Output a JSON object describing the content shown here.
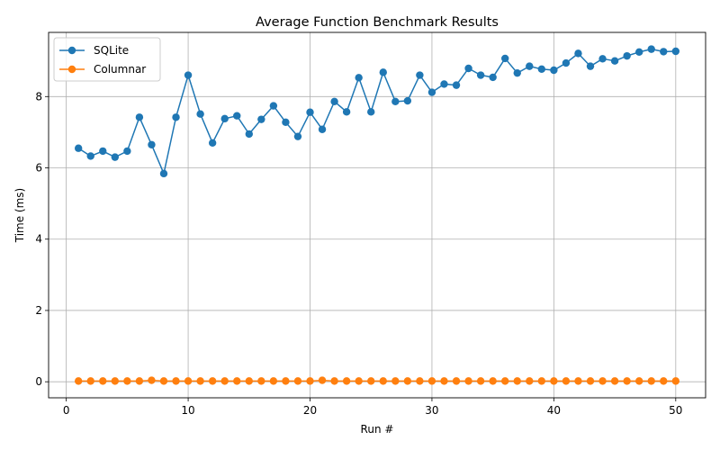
{
  "chart_data": {
    "type": "line",
    "title": "Average Function Benchmark Results",
    "xlabel": "Run #",
    "ylabel": "Time (ms)",
    "xlim": [
      -1.45,
      52.45
    ],
    "ylim": [
      -0.45,
      9.8
    ],
    "xticks": [
      "0",
      "10",
      "20",
      "30",
      "40",
      "50"
    ],
    "yticks": [
      "0",
      "2",
      "4",
      "6",
      "8"
    ],
    "grid": true,
    "legend_position": "top-left",
    "x": [
      1,
      2,
      3,
      4,
      5,
      6,
      7,
      8,
      9,
      10,
      11,
      12,
      13,
      14,
      15,
      16,
      17,
      18,
      19,
      20,
      21,
      22,
      23,
      24,
      25,
      26,
      27,
      28,
      29,
      30,
      31,
      32,
      33,
      34,
      35,
      36,
      37,
      38,
      39,
      40,
      41,
      42,
      43,
      44,
      45,
      46,
      47,
      48,
      49,
      50
    ],
    "series": [
      {
        "name": "SQLite",
        "color": "#1f77b4",
        "values": [
          6.55,
          6.33,
          6.47,
          6.3,
          6.47,
          7.42,
          6.65,
          5.84,
          7.42,
          8.6,
          7.51,
          6.7,
          7.38,
          7.46,
          6.95,
          7.36,
          7.74,
          7.28,
          6.88,
          7.56,
          7.08,
          7.86,
          7.57,
          8.53,
          7.57,
          8.68,
          7.86,
          7.88,
          8.6,
          8.12,
          8.35,
          8.32,
          8.79,
          8.6,
          8.54,
          9.07,
          8.66,
          8.85,
          8.77,
          8.74,
          8.94,
          9.21,
          8.85,
          9.06,
          9.0,
          9.14,
          9.25,
          9.33,
          9.26,
          9.27
        ]
      },
      {
        "name": "Columnar",
        "color": "#ff7f0e",
        "values": [
          0.02,
          0.02,
          0.02,
          0.02,
          0.02,
          0.02,
          0.04,
          0.02,
          0.02,
          0.02,
          0.02,
          0.02,
          0.02,
          0.02,
          0.02,
          0.02,
          0.02,
          0.02,
          0.02,
          0.02,
          0.04,
          0.02,
          0.02,
          0.02,
          0.02,
          0.02,
          0.02,
          0.02,
          0.02,
          0.02,
          0.02,
          0.02,
          0.02,
          0.02,
          0.02,
          0.02,
          0.02,
          0.02,
          0.02,
          0.02,
          0.02,
          0.02,
          0.02,
          0.02,
          0.02,
          0.02,
          0.02,
          0.02,
          0.02,
          0.02
        ]
      }
    ]
  }
}
